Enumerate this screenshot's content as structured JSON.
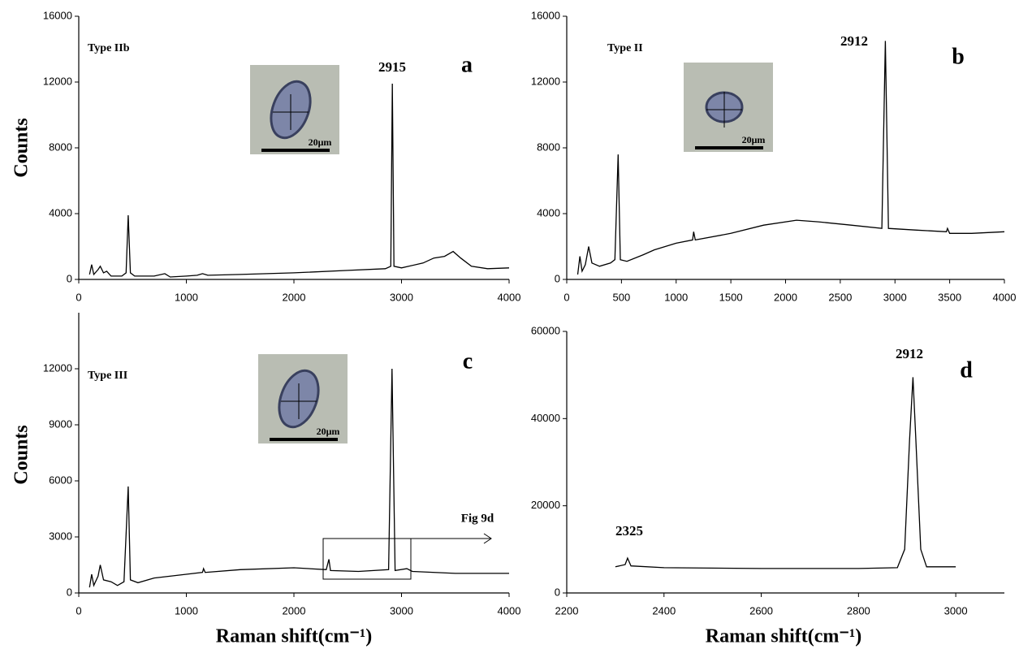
{
  "chart_data": [
    {
      "type": "line",
      "panel": "a",
      "note": "Type IIb",
      "peak_labels": [
        2915
      ],
      "inset_scale": "20μm",
      "y_label": "Counts",
      "color": "#000000",
      "xlim": [
        0,
        4000
      ],
      "xticks": [
        0,
        1000,
        2000,
        3000,
        4000
      ],
      "ylim": [
        0,
        16000
      ],
      "yticks": [
        0,
        4000,
        8000,
        12000,
        16000
      ],
      "x": [
        100,
        120,
        140,
        180,
        200,
        230,
        260,
        300,
        400,
        440,
        460,
        480,
        520,
        700,
        800,
        850,
        1000,
        1100,
        1150,
        1200,
        1500,
        2000,
        2500,
        2850,
        2900,
        2915,
        2930,
        3000,
        3200,
        3300,
        3400,
        3480,
        3550,
        3650,
        3800,
        4000
      ],
      "values": [
        300,
        900,
        300,
        600,
        800,
        400,
        500,
        200,
        200,
        400,
        3900,
        400,
        200,
        200,
        350,
        150,
        200,
        250,
        350,
        250,
        300,
        400,
        550,
        650,
        800,
        11900,
        800,
        700,
        1000,
        1300,
        1400,
        1700,
        1300,
        800,
        650,
        700
      ]
    },
    {
      "type": "line",
      "panel": "b",
      "note": "Type II",
      "peak_labels": [
        2912
      ],
      "inset_scale": "20μm",
      "color": "#000000",
      "xlim": [
        0,
        4000
      ],
      "xticks": [
        0,
        500,
        1000,
        1500,
        2000,
        2500,
        3000,
        3500,
        4000
      ],
      "ylim": [
        0,
        16000
      ],
      "yticks": [
        0,
        4000,
        8000,
        12000,
        16000
      ],
      "x": [
        100,
        120,
        140,
        170,
        200,
        230,
        300,
        400,
        440,
        470,
        490,
        550,
        700,
        800,
        1000,
        1150,
        1160,
        1175,
        1500,
        1800,
        2100,
        2300,
        2600,
        2880,
        2912,
        2940,
        3200,
        3470,
        3480,
        3500,
        3700,
        4000
      ],
      "values": [
        300,
        1400,
        500,
        900,
        2000,
        1000,
        800,
        1000,
        1200,
        7600,
        1200,
        1100,
        1500,
        1800,
        2200,
        2400,
        2900,
        2400,
        2800,
        3300,
        3600,
        3500,
        3300,
        3100,
        14500,
        3100,
        3000,
        2900,
        3100,
        2800,
        2800,
        2900
      ]
    },
    {
      "type": "line",
      "panel": "c",
      "note": "Type III",
      "inset_scale": "20μm",
      "y_label": "Counts",
      "x_label": "Raman shift(cm⁻¹)",
      "callout": "Fig 9d",
      "color": "#000000",
      "xlim": [
        0,
        4000
      ],
      "xticks": [
        0,
        1000,
        2000,
        3000,
        4000
      ],
      "ylim": [
        0,
        15000
      ],
      "yticks": [
        0,
        3000,
        6000,
        9000,
        12000
      ],
      "x": [
        100,
        120,
        140,
        180,
        200,
        230,
        300,
        360,
        420,
        460,
        480,
        550,
        700,
        1000,
        1150,
        1160,
        1175,
        1500,
        2000,
        2300,
        2325,
        2340,
        2600,
        2880,
        2912,
        2940,
        3050,
        3100,
        3500,
        4000
      ],
      "values": [
        300,
        1000,
        400,
        900,
        1500,
        700,
        600,
        400,
        600,
        5700,
        700,
        550,
        800,
        1000,
        1100,
        1300,
        1100,
        1250,
        1350,
        1250,
        1800,
        1200,
        1150,
        1250,
        12000,
        1200,
        1300,
        1150,
        1050,
        1050
      ]
    },
    {
      "type": "line",
      "panel": "d",
      "peak_labels": [
        2912,
        2325
      ],
      "x_label": "Raman shift(cm⁻¹)",
      "color": "#000000",
      "xlim": [
        2200,
        3100
      ],
      "xticks": [
        2200,
        2400,
        2600,
        2800,
        3000
      ],
      "ylim": [
        0,
        60000
      ],
      "yticks": [
        0,
        20000,
        40000,
        60000
      ],
      "x": [
        2300,
        2320,
        2325,
        2332,
        2400,
        2600,
        2800,
        2880,
        2895,
        2905,
        2912,
        2918,
        2928,
        2940,
        3000
      ],
      "values": [
        6000,
        6500,
        8000,
        6200,
        5800,
        5600,
        5600,
        5800,
        10000,
        35000,
        49500,
        35000,
        10000,
        6000,
        6000
      ]
    }
  ]
}
